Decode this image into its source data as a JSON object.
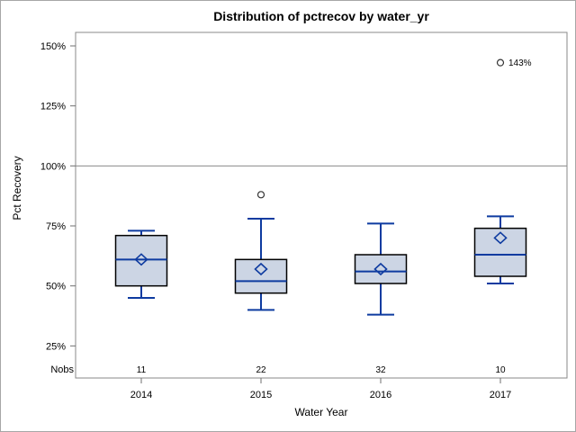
{
  "chart_data": {
    "type": "boxplot",
    "title": "Distribution of pctrecov by water_yr",
    "xlabel": "Water Year",
    "ylabel": "Pct Recovery",
    "nobs_label": "Nobs",
    "categories": [
      "2014",
      "2015",
      "2016",
      "2017"
    ],
    "nobs": [
      11,
      22,
      32,
      10
    ],
    "y_ticks": [
      150,
      125,
      100,
      75,
      50,
      25
    ],
    "y_tick_suffix": "%",
    "reference_line": 100,
    "series": [
      {
        "category": "2014",
        "n": 11,
        "whisker_low": 45,
        "q1": 50,
        "median": 61,
        "mean": 61,
        "q3": 71,
        "whisker_high": 73,
        "outliers": []
      },
      {
        "category": "2015",
        "n": 22,
        "whisker_low": 40,
        "q1": 47,
        "median": 52,
        "mean": 57,
        "q3": 61,
        "whisker_high": 78,
        "outliers": [
          {
            "value": 88,
            "label": ""
          }
        ]
      },
      {
        "category": "2016",
        "n": 32,
        "whisker_low": 38,
        "q1": 51,
        "median": 56,
        "mean": 57,
        "q3": 63,
        "whisker_high": 76,
        "outliers": []
      },
      {
        "category": "2017",
        "n": 10,
        "whisker_low": 51,
        "q1": 54,
        "median": 63,
        "mean": 70,
        "q3": 74,
        "whisker_high": 79,
        "outliers": [
          {
            "value": 143,
            "label": "143%"
          }
        ]
      }
    ],
    "colors": {
      "box_fill": "#ccd5e4",
      "box_border": "#000000",
      "line_blue": "#0e3ba0",
      "reference_line": "#8a8a8a",
      "plot_border": "#8a8a8a",
      "tick": "#6f6f6f",
      "outlier_stroke": "#333333",
      "figure_border": "#a6a6a6",
      "background": "#ffffff"
    }
  }
}
